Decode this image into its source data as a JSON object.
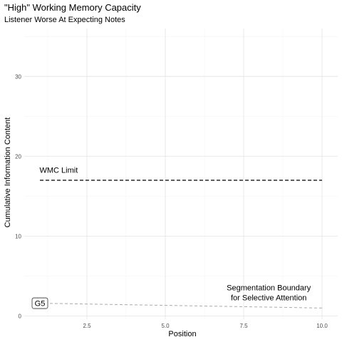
{
  "chart_data": {
    "type": "line",
    "title": "\"High\" Working Memory Capacity",
    "subtitle": "Listener Worse At Expecting Notes",
    "xlabel": "Position",
    "ylabel": "Cumulative Information Content",
    "xlim": [
      0.5,
      10.5
    ],
    "ylim": [
      -0.4,
      36
    ],
    "x_ticks": [
      2.5,
      5.0,
      7.5,
      10.0
    ],
    "x_tick_labels": [
      "2.5",
      "5.0",
      "7.5",
      "10.0"
    ],
    "y_ticks": [
      0,
      10,
      20,
      30
    ],
    "y_tick_labels": [
      "0",
      "10",
      "20",
      "30"
    ],
    "grid": true,
    "legend": "none",
    "series": [
      {
        "line_style": "dashed",
        "color": "#000000",
        "x": [
          1,
          10
        ],
        "y": [
          17,
          17
        ]
      },
      {
        "line_style": "dashed",
        "color": "#aaaaaa",
        "x": [
          1,
          10
        ],
        "y": [
          1.6,
          1.0
        ]
      }
    ],
    "annotations": [
      {
        "text": "WMC Limit",
        "x": 1.6,
        "y": 18.3,
        "boxed": false,
        "lines": [
          "WMC Limit"
        ]
      },
      {
        "text": "Segmentation Boundary for Selective Attention",
        "x": 8.3,
        "y": 2.3,
        "boxed": false,
        "lines": [
          "Segmentation Boundary",
          "for Selective Attention"
        ]
      },
      {
        "text": "G5",
        "x": 1.0,
        "y": 1.6,
        "boxed": true,
        "lines": [
          "G5"
        ]
      }
    ]
  }
}
